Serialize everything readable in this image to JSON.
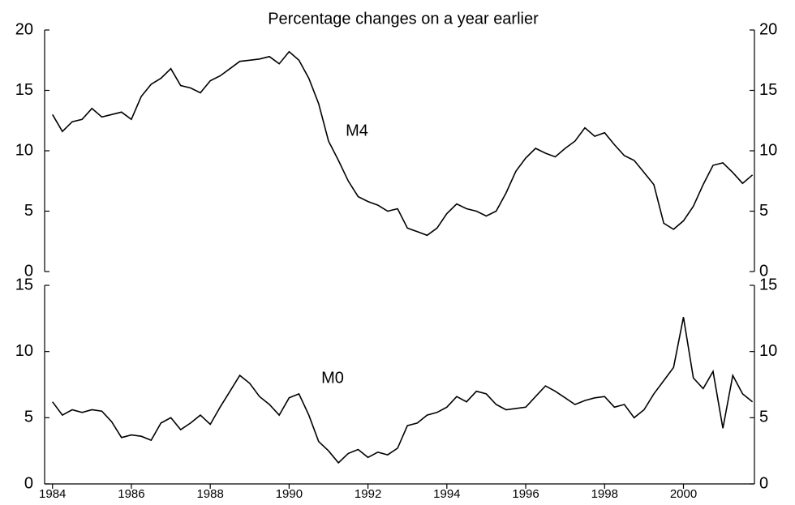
{
  "chart_data": [
    {
      "type": "line",
      "title": "Percentage changes on a year earlier",
      "xlim": [
        1983.8,
        2001.8
      ],
      "ylim": [
        0,
        20
      ],
      "yticks": [
        0,
        5,
        10,
        15,
        20
      ],
      "grid": false,
      "x": [
        1984,
        1984.25,
        1984.5,
        1984.75,
        1985,
        1985.25,
        1985.5,
        1985.75,
        1986,
        1986.25,
        1986.5,
        1986.75,
        1987,
        1987.25,
        1987.5,
        1987.75,
        1988,
        1988.25,
        1988.5,
        1988.75,
        1989,
        1989.25,
        1989.5,
        1989.75,
        1990,
        1990.25,
        1990.5,
        1990.75,
        1991,
        1991.25,
        1991.5,
        1991.75,
        1992,
        1992.25,
        1992.5,
        1992.75,
        1993,
        1993.25,
        1993.5,
        1993.75,
        1994,
        1994.25,
        1994.5,
        1994.75,
        1995,
        1995.25,
        1995.5,
        1995.75,
        1996,
        1996.25,
        1996.5,
        1996.75,
        1997,
        1997.25,
        1997.5,
        1997.75,
        1998,
        1998.25,
        1998.5,
        1998.75,
        1999,
        1999.25,
        1999.5,
        1999.75,
        2000,
        2000.25,
        2000.5,
        2000.75,
        2001,
        2001.25,
        2001.5,
        2001.75
      ],
      "series": [
        {
          "name": "M4",
          "color": "#000000",
          "values": [
            13,
            11.6,
            12.4,
            12.6,
            13.5,
            12.8,
            13,
            13.2,
            12.6,
            14.5,
            15.5,
            16,
            16.8,
            15.4,
            15.2,
            14.8,
            15.8,
            16.2,
            16.8,
            17.4,
            17.5,
            17.6,
            17.8,
            17.2,
            18.2,
            17.5,
            16,
            13.9,
            10.8,
            9.2,
            7.5,
            6.2,
            5.8,
            5.5,
            5,
            5.2,
            3.6,
            3.3,
            3,
            3.6,
            4.8,
            5.6,
            5.2,
            5,
            4.6,
            5,
            6.5,
            8.3,
            9.4,
            10.2,
            9.8,
            9.5,
            10.2,
            10.8,
            11.9,
            11.2,
            11.5,
            10.5,
            9.6,
            9.2,
            8.2,
            7.2,
            4,
            3.5,
            4.2,
            5.4,
            7.2,
            8.8,
            9,
            8.2,
            7.3,
            8
          ]
        }
      ]
    },
    {
      "type": "line",
      "xlim": [
        1983.8,
        2001.8
      ],
      "xticks": [
        1984,
        1986,
        1988,
        1990,
        1992,
        1994,
        1996,
        1998,
        2000
      ],
      "ylim": [
        0,
        15
      ],
      "yticks": [
        0,
        5,
        10,
        15
      ],
      "grid": false,
      "x": [
        1984,
        1984.25,
        1984.5,
        1984.75,
        1985,
        1985.25,
        1985.5,
        1985.75,
        1986,
        1986.25,
        1986.5,
        1986.75,
        1987,
        1987.25,
        1987.5,
        1987.75,
        1988,
        1988.25,
        1988.5,
        1988.75,
        1989,
        1989.25,
        1989.5,
        1989.75,
        1990,
        1990.25,
        1990.5,
        1990.75,
        1991,
        1991.25,
        1991.5,
        1991.75,
        1992,
        1992.25,
        1992.5,
        1992.75,
        1993,
        1993.25,
        1993.5,
        1993.75,
        1994,
        1994.25,
        1994.5,
        1994.75,
        1995,
        1995.25,
        1995.5,
        1995.75,
        1996,
        1996.25,
        1996.5,
        1996.75,
        1997,
        1997.25,
        1997.5,
        1997.75,
        1998,
        1998.25,
        1998.5,
        1998.75,
        1999,
        1999.25,
        1999.5,
        1999.75,
        2000,
        2000.25,
        2000.5,
        2000.75,
        2001,
        2001.25,
        2001.5,
        2001.75
      ],
      "series": [
        {
          "name": "M0",
          "color": "#000000",
          "values": [
            6.2,
            5.2,
            5.6,
            5.4,
            5.6,
            5.5,
            4.7,
            3.5,
            3.7,
            3.6,
            3.3,
            4.6,
            5,
            4.1,
            4.6,
            5.2,
            4.5,
            5.8,
            7,
            8.2,
            7.6,
            6.6,
            6,
            5.2,
            6.5,
            6.8,
            5.2,
            3.2,
            2.5,
            1.6,
            2.3,
            2.6,
            2,
            2.4,
            2.2,
            2.7,
            4.4,
            4.6,
            5.2,
            5.4,
            5.8,
            6.6,
            6.2,
            7,
            6.8,
            6,
            5.6,
            5.7,
            5.8,
            6.6,
            7.4,
            7,
            6.5,
            6,
            6.3,
            6.5,
            6.6,
            5.8,
            6,
            5,
            5.6,
            6.8,
            7.8,
            8.8,
            12.6,
            8,
            7.2,
            8.5,
            4.2,
            8.2,
            6.8,
            6.2
          ]
        }
      ]
    }
  ]
}
